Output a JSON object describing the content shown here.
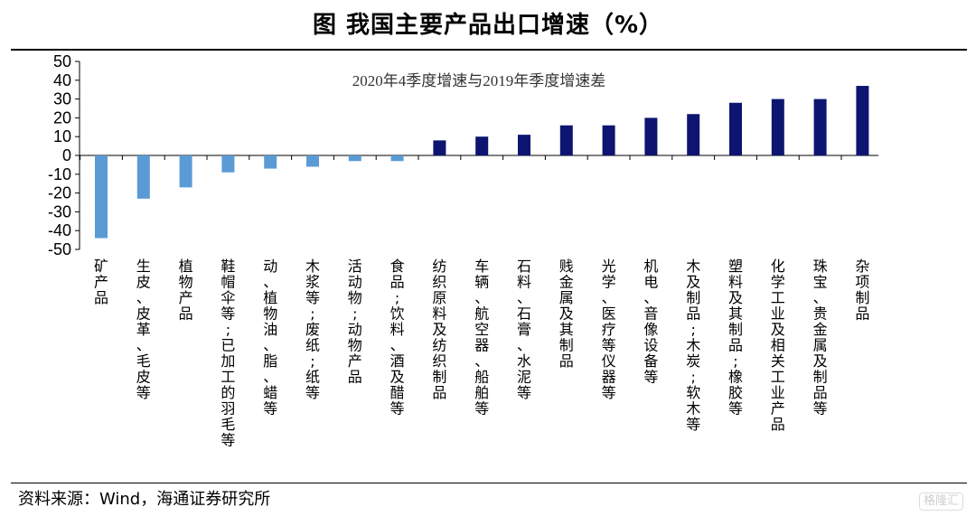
{
  "title": "图  我国主要产品出口增速（%）",
  "source": "资料来源：Wind，海通证券研究所",
  "watermark": "格隆汇",
  "colors": {
    "negative": "#5B9BD5",
    "positive": "#0D1570",
    "axis": "#000000"
  },
  "chart_data": {
    "type": "bar",
    "title": "",
    "annotation": "2020年4季度增速与2019年季度增速差",
    "xlabel": "",
    "ylabel": "",
    "ylim": [
      -50,
      50
    ],
    "yticks": [
      50,
      40,
      30,
      20,
      10,
      0,
      -10,
      -20,
      -30,
      -40,
      -50
    ],
    "grid": false,
    "categories": [
      "矿产品",
      "生皮、皮革、毛皮等",
      "植物产品",
      "鞋帽伞等;已加工的羽毛等",
      "动、植物油、脂、蜡等",
      "木浆等;废纸;纸等",
      "活动物;动物产品",
      "食品;饮料、酒及醋等",
      "纺织原料及纺织制品",
      "车辆、航空器、船舶等",
      "石料、石膏、水泥等",
      "贱金属及其制品",
      "光学、医疗等仪器等",
      "机电、音像设备等",
      "木及制品;木炭;软木等",
      "塑料及其制品;橡胶等",
      "化学工业及相关工业产品",
      "珠宝、贵金属及制品等",
      "杂项制品"
    ],
    "values": [
      -44,
      -23,
      -17,
      -9,
      -7,
      -6,
      -3,
      -3,
      8,
      10,
      11,
      16,
      16,
      20,
      22,
      28,
      30,
      30,
      37
    ]
  }
}
